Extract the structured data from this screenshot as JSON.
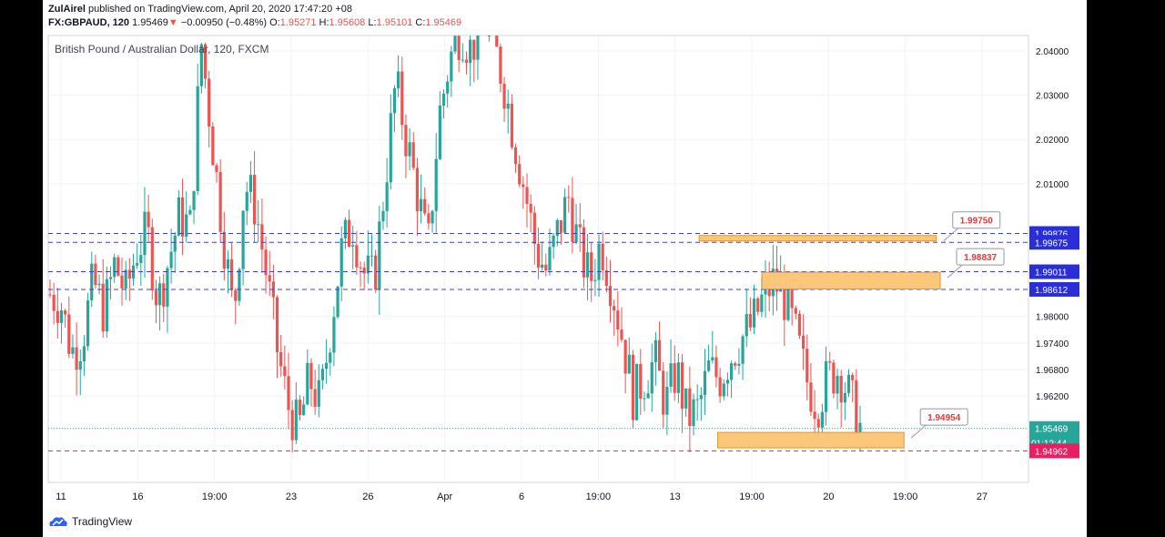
{
  "header": {
    "author": "ZulAirel",
    "published_text": "published on TradingView.com, April 20, 2020 17:47:20 +08",
    "symbol": "FX:GBPAUD, 120",
    "last": "1.95469",
    "change": "−0.00950 (−0.48%)",
    "o_label": "O:",
    "o": "1.95271",
    "h_label": "H:",
    "h": "1.95608",
    "l_label": "L:",
    "l": "1.95101",
    "c_label": "C:",
    "c": "1.95469"
  },
  "brand": {
    "name": "TradingView"
  },
  "colors": {
    "up": "#26a69a",
    "down": "#ef5350",
    "line": "#3f3fcf",
    "zone": "#fbc87a",
    "price": "#26a69a",
    "target": "#e91e63"
  },
  "chart_data": {
    "type": "candlestick",
    "title": "British Pound / Australian Dollar, 120, FXCM",
    "y_ticks": [
      "2.04000",
      "2.03000",
      "2.02000",
      "2.01000",
      "1.98000",
      "1.97400",
      "1.96800",
      "1.96200"
    ],
    "ylim": [
      1.9425,
      2.0435
    ],
    "x_ticks": [
      "11",
      "16",
      "19:00",
      "23",
      "26",
      "Apr",
      "6",
      "19:00",
      "13",
      "19:00",
      "20",
      "19:00",
      "27"
    ],
    "price_path": [
      1.985,
      1.983,
      1.972,
      1.975,
      1.988,
      1.981,
      1.992,
      1.985,
      1.995,
      1.999,
      1.983,
      1.993,
      2.003,
      2.0,
      2.042,
      2.02,
      1.999,
      1.98,
      2.01,
      2.005,
      1.99,
      1.973,
      1.96,
      1.954,
      1.966,
      1.96,
      1.978,
      1.995,
      2.001,
      1.99,
      1.988,
      2.01,
      2.033,
      2.02,
      2.008,
      1.995,
      2.025,
      2.038,
      2.045,
      2.04,
      2.048,
      2.042,
      2.033,
      2.02,
      2.008,
      1.995,
      1.99,
      1.999,
      2.007,
      1.995,
      1.988,
      1.997,
      1.987,
      1.975,
      1.962,
      1.966,
      1.97,
      1.96,
      1.968,
      1.957,
      1.959,
      1.968,
      1.966,
      1.971,
      1.975,
      1.978,
      1.984,
      1.988,
      1.984,
      1.976,
      1.966,
      1.96,
      1.966,
      1.968,
      1.962,
      1.955
    ],
    "support_resistance": [
      {
        "label": "1.99876",
        "value": 1.99876,
        "style": "dashed",
        "color": "#3f3fcf"
      },
      {
        "label": "1.99675",
        "value": 1.99675,
        "style": "dashed",
        "color": "#3f3fcf"
      },
      {
        "label": "1.99011",
        "value": 1.99011,
        "style": "dashed",
        "color": "#3f3fcf"
      },
      {
        "label": "1.98612",
        "value": 1.98612,
        "style": "dashed",
        "color": "#3f3fcf"
      }
    ],
    "current_price": {
      "label": "1.95469",
      "countdown": "01:12:44",
      "value": 1.95469
    },
    "target_line": {
      "label": "1.94962",
      "value": 1.94962
    },
    "zones": [
      {
        "top": 1.9983,
        "bottom": 1.9975,
        "x_from": 0.664,
        "x_to": 0.906,
        "callout": "1.99750"
      },
      {
        "top": 1.99,
        "bottom": 1.9862,
        "x_from": 0.728,
        "x_to": 0.91,
        "callout": "1.98837"
      },
      {
        "top": 1.9538,
        "bottom": 1.9503,
        "x_from": 0.683,
        "x_to": 0.873,
        "callout": "1.94954"
      }
    ]
  }
}
